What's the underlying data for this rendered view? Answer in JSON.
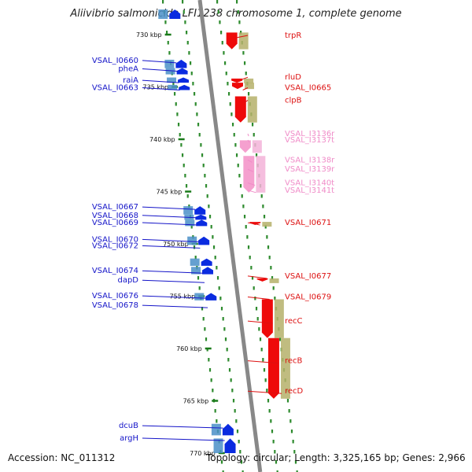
{
  "title": "Aliivibrio salmonicida LFI1238 chromosome 1, complete genome",
  "footer": {
    "accession": "Accession: NC_011312",
    "summary": "Topology: circular; Length: 3,325,165 bp; Genes: 2,966"
  },
  "colors": {
    "backbone": "#888888",
    "track_dots": "#2e8b2e",
    "forward_label": "#1414c8",
    "reverse_label": "#dd1111",
    "rna_label": "#f08cc8",
    "forward_arrow": "#0a2be0",
    "reverse_arrow": "#ee0a0a",
    "rna_arrow": "#f5a0cf"
  },
  "scale_ticks": [
    {
      "kbp": 730,
      "label": "730 kbp"
    },
    {
      "kbp": 735,
      "label": "735 kbp"
    },
    {
      "kbp": 740,
      "label": "740 kbp"
    },
    {
      "kbp": 745,
      "label": "745 kbp"
    },
    {
      "kbp": 750,
      "label": "750 kbp"
    },
    {
      "kbp": 755,
      "label": "755 kbp"
    },
    {
      "kbp": 760,
      "label": "760 kbp"
    },
    {
      "kbp": 765,
      "label": "765 kbp"
    },
    {
      "kbp": 770,
      "label": "770 kbp"
    }
  ],
  "left_labels": [
    {
      "text": "VSAL_I0660",
      "kbp": 732.7
    },
    {
      "text": "pheA",
      "kbp": 733.5
    },
    {
      "text": "raiA",
      "kbp": 734.6
    },
    {
      "text": "VSAL_I0663",
      "kbp": 735.3
    },
    {
      "text": "VSAL_I0667",
      "kbp": 746.7
    },
    {
      "text": "VSAL_I0668",
      "kbp": 747.5
    },
    {
      "text": "VSAL_I0669",
      "kbp": 748.2
    },
    {
      "text": "VSAL_I0670",
      "kbp": 749.8
    },
    {
      "text": "VSAL_I0672",
      "kbp": 750.4
    },
    {
      "text": "VSAL_I0674",
      "kbp": 752.8
    },
    {
      "text": "dapD",
      "kbp": 753.7
    },
    {
      "text": "VSAL_I0676",
      "kbp": 755.2
    },
    {
      "text": "VSAL_I0678",
      "kbp": 756.1
    },
    {
      "text": "dcuB",
      "kbp": 767.6
    },
    {
      "text": "argH",
      "kbp": 768.8
    }
  ],
  "right_labels": [
    {
      "text": "trpR",
      "kbp": 730.3,
      "kind": "gene"
    },
    {
      "text": "rluD",
      "kbp": 734.3,
      "kind": "gene"
    },
    {
      "text": "VSAL_I0665",
      "kbp": 735.3,
      "kind": "gene"
    },
    {
      "text": "clpB",
      "kbp": 736.5,
      "kind": "gene"
    },
    {
      "text": "VSAL_I3136r",
      "kbp": 739.7,
      "kind": "rna"
    },
    {
      "text": "VSAL_I3137t",
      "kbp": 740.3,
      "kind": "rna"
    },
    {
      "text": "VSAL_I3138r",
      "kbp": 742.2,
      "kind": "rna"
    },
    {
      "text": "VSAL_I3139r",
      "kbp": 743.1,
      "kind": "rna"
    },
    {
      "text": "VSAL_I3140t",
      "kbp": 744.4,
      "kind": "rna"
    },
    {
      "text": "VSAL_I3141t",
      "kbp": 745.1,
      "kind": "rna"
    },
    {
      "text": "VSAL_I0671",
      "kbp": 748.2,
      "kind": "gene"
    },
    {
      "text": "VSAL_I0677",
      "kbp": 753.3,
      "kind": "gene"
    },
    {
      "text": "VSAL_I0679",
      "kbp": 755.3,
      "kind": "gene"
    },
    {
      "text": "recC",
      "kbp": 757.6,
      "kind": "gene"
    },
    {
      "text": "recB",
      "kbp": 761.4,
      "kind": "gene"
    },
    {
      "text": "recD",
      "kbp": 764.3,
      "kind": "gene"
    }
  ],
  "features": [
    {
      "strand": "+",
      "start": 727.6,
      "end": 728.5,
      "type": "arrow"
    },
    {
      "strand": "+",
      "start": 732.4,
      "end": 733.2,
      "type": "arrow"
    },
    {
      "strand": "+",
      "start": 733.2,
      "end": 733.8,
      "type": "arrow"
    },
    {
      "strand": "+",
      "start": 734.1,
      "end": 734.6,
      "type": "arrow"
    },
    {
      "strand": "+",
      "start": 734.8,
      "end": 735.3,
      "type": "arrow"
    },
    {
      "strand": "+",
      "start": 746.4,
      "end": 747.2,
      "type": "arrow"
    },
    {
      "strand": "+",
      "start": 747.2,
      "end": 747.7,
      "type": "arrow"
    },
    {
      "strand": "+",
      "start": 747.7,
      "end": 748.3,
      "type": "arrow"
    },
    {
      "strand": "+",
      "start": 749.3,
      "end": 750.1,
      "type": "arrow"
    },
    {
      "strand": "+",
      "start": 751.4,
      "end": 752.1,
      "type": "arrow"
    },
    {
      "strand": "+",
      "start": 752.2,
      "end": 752.9,
      "type": "arrow"
    },
    {
      "strand": "+",
      "start": 754.7,
      "end": 755.4,
      "type": "arrow"
    },
    {
      "strand": "+",
      "start": 767.2,
      "end": 768.3,
      "type": "arrow"
    },
    {
      "strand": "+",
      "start": 768.6,
      "end": 770.0,
      "type": "arrow"
    },
    {
      "strand": "-",
      "start": 729.8,
      "end": 731.4,
      "type": "arrow"
    },
    {
      "strand": "-",
      "start": 734.2,
      "end": 734.6,
      "type": "arrow"
    },
    {
      "strand": "-",
      "start": 734.6,
      "end": 735.2,
      "type": "arrow"
    },
    {
      "strand": "-",
      "start": 735.9,
      "end": 738.4,
      "type": "arrow"
    },
    {
      "strand": "-",
      "start": 740.1,
      "end": 741.3,
      "type": "rna"
    },
    {
      "strand": "-",
      "start": 741.6,
      "end": 745.1,
      "type": "rna"
    },
    {
      "strand": "-",
      "start": 747.9,
      "end": 748.2,
      "type": "arrow"
    },
    {
      "strand": "-",
      "start": 753.3,
      "end": 753.6,
      "type": "arrow"
    },
    {
      "strand": "-",
      "start": 755.3,
      "end": 759.0,
      "type": "arrow"
    },
    {
      "strand": "-",
      "start": 759.0,
      "end": 764.8,
      "type": "arrow"
    }
  ]
}
